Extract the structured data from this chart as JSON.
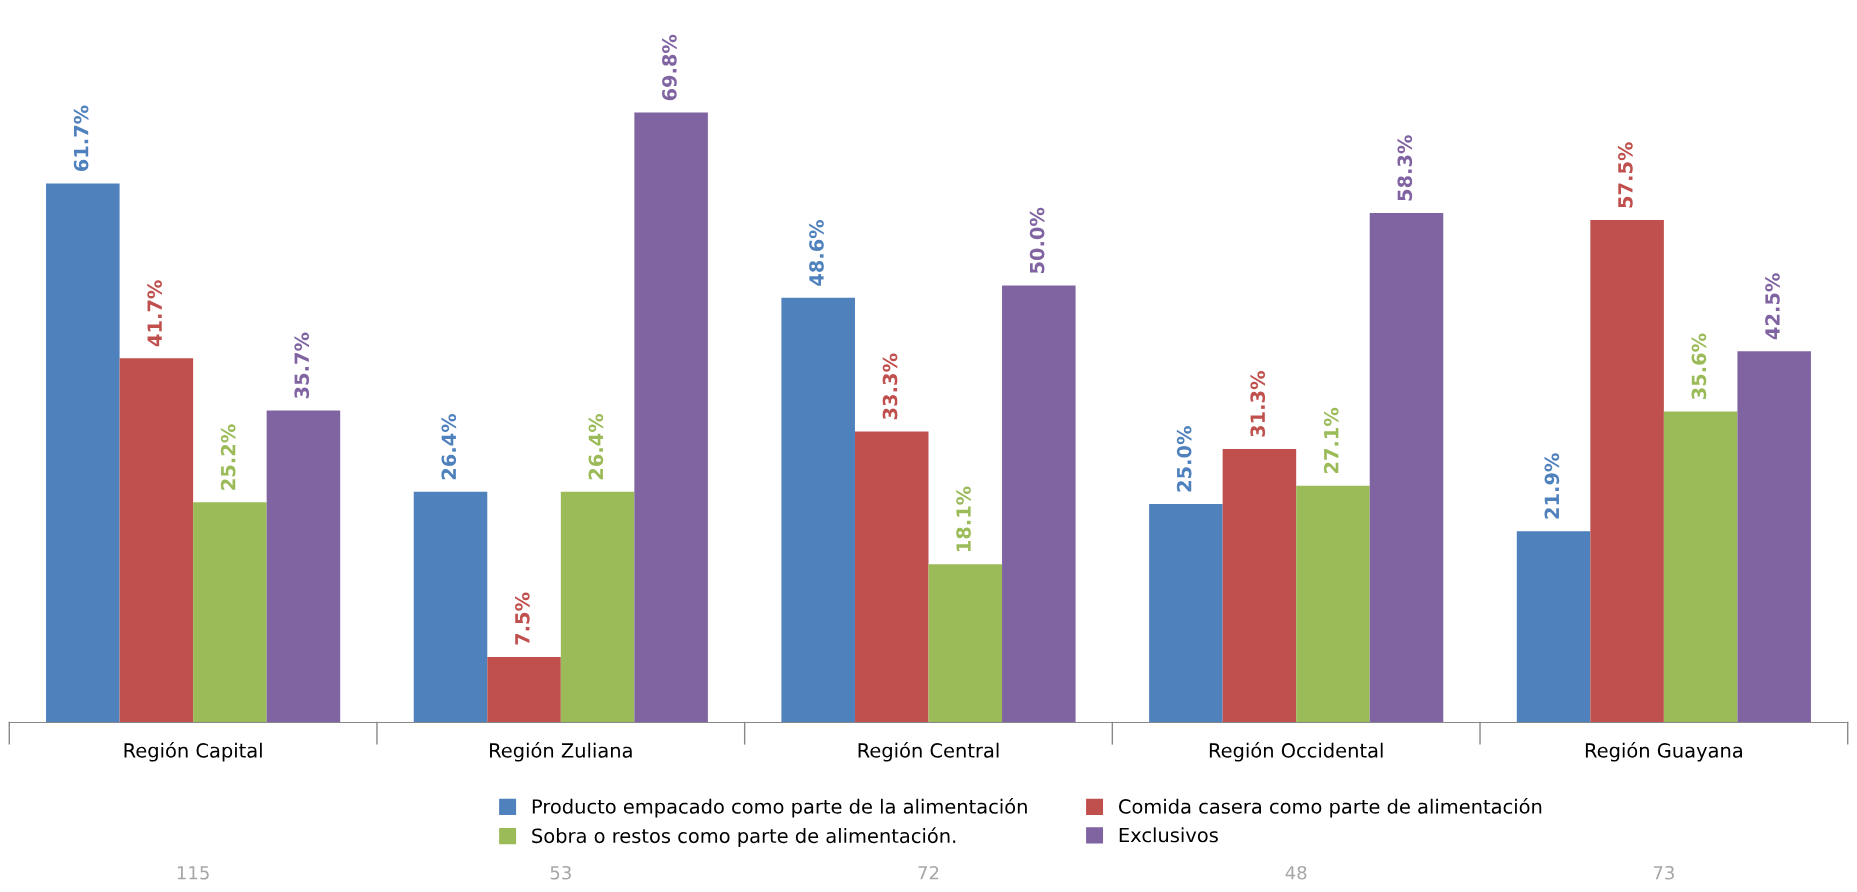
{
  "chart_data": {
    "type": "bar",
    "categories": [
      "Región Capital",
      "Región Zuliana",
      "Región Central",
      "Región Occidental",
      "Región Guayana"
    ],
    "series": [
      {
        "name": "Producto empacado como parte de la alimentación",
        "color": "#4f81bd",
        "values": [
          61.7,
          26.4,
          48.6,
          25.0,
          21.9
        ],
        "value_labels": [
          "61.7%",
          "26.4%",
          "48.6%",
          "25.0%",
          "21.9%"
        ]
      },
      {
        "name": "Comida casera como parte de alimentación",
        "color": "#c0504d",
        "values": [
          41.7,
          7.5,
          33.3,
          31.3,
          57.5
        ],
        "value_labels": [
          "41.7%",
          "7.5%",
          "33.3%",
          "31.3%",
          "57.5%"
        ]
      },
      {
        "name": "Sobra o restos como parte de alimentación.",
        "color": "#9bbb59",
        "values": [
          25.2,
          26.4,
          18.1,
          27.1,
          35.6
        ],
        "value_labels": [
          "25.2%",
          "26.4%",
          "18.1%",
          "27.1%",
          "35.6%"
        ]
      },
      {
        "name": "Exclusivos",
        "color": "#8064a2",
        "values": [
          35.7,
          69.8,
          50.0,
          58.3,
          42.5
        ],
        "value_labels": [
          "35.7%",
          "69.8%",
          "50.0%",
          "58.3%",
          "42.5%"
        ]
      }
    ],
    "annotations": [
      "115",
      "53",
      "72",
      "48",
      "73"
    ],
    "legend": "bottom",
    "grid": false,
    "tick_labels": "x"
  }
}
